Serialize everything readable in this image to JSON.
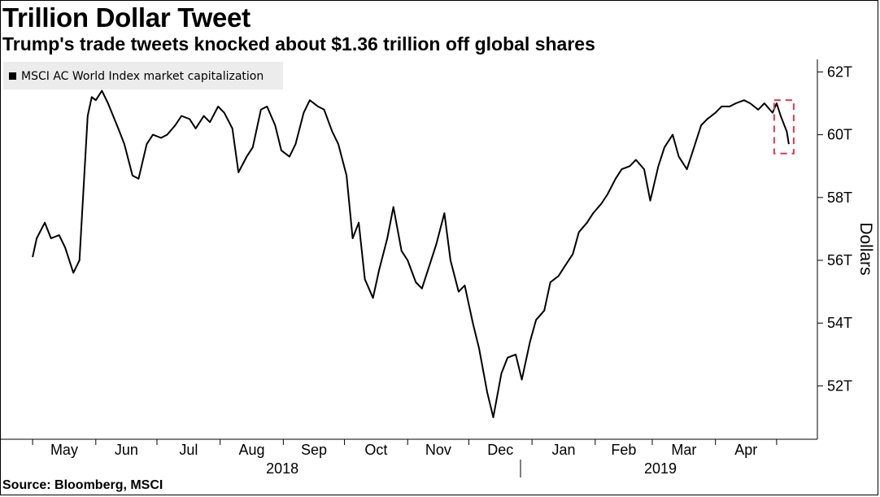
{
  "title": "Trillion Dollar Tweet",
  "subtitle": "Trump's trade tweets knocked about $1.36 trillion off global shares",
  "source": "Source: Bloomberg, MSCI",
  "chart_data": {
    "type": "line",
    "title": "Trillion Dollar Tweet",
    "subtitle": "Trump's trade tweets knocked about $1.36 trillion off global shares",
    "ylabel": "Dollars",
    "xlabel": "",
    "ylim": [
      50.3,
      62.4
    ],
    "y_ticks": [
      52,
      54,
      56,
      58,
      60,
      62
    ],
    "y_tick_labels": [
      "52T",
      "54T",
      "56T",
      "58T",
      "60T",
      "62T"
    ],
    "y_axis_position": "right",
    "x_tick_labels": [
      "May",
      "Jun",
      "Jul",
      "Aug",
      "Sep",
      "Oct",
      "Nov",
      "Dec",
      "Jan",
      "Feb",
      "Mar",
      "Apr"
    ],
    "x_year_labels": [
      "2018",
      "2019"
    ],
    "grid": false,
    "legend_position": "top-left",
    "series": [
      {
        "name": "MSCI AC World Index market capitalization",
        "color": "#000000",
        "x": [
          "2018-05-01",
          "2018-05-03",
          "2018-05-07",
          "2018-05-10",
          "2018-05-14",
          "2018-05-17",
          "2018-05-21",
          "2018-05-24",
          "2018-05-28",
          "2018-05-30",
          "2018-06-01",
          "2018-06-04",
          "2018-06-07",
          "2018-06-12",
          "2018-06-15",
          "2018-06-19",
          "2018-06-22",
          "2018-06-26",
          "2018-06-29",
          "2018-07-03",
          "2018-07-06",
          "2018-07-10",
          "2018-07-13",
          "2018-07-17",
          "2018-07-20",
          "2018-07-24",
          "2018-07-27",
          "2018-07-31",
          "2018-08-03",
          "2018-08-07",
          "2018-08-10",
          "2018-08-14",
          "2018-08-17",
          "2018-08-21",
          "2018-08-24",
          "2018-08-28",
          "2018-08-31",
          "2018-09-04",
          "2018-09-07",
          "2018-09-11",
          "2018-09-14",
          "2018-09-18",
          "2018-09-21",
          "2018-09-25",
          "2018-09-28",
          "2018-10-02",
          "2018-10-05",
          "2018-10-08",
          "2018-10-11",
          "2018-10-15",
          "2018-10-18",
          "2018-10-22",
          "2018-10-25",
          "2018-10-29",
          "2018-11-01",
          "2018-11-05",
          "2018-11-08",
          "2018-11-12",
          "2018-11-15",
          "2018-11-19",
          "2018-11-22",
          "2018-11-26",
          "2018-11-29",
          "2018-12-03",
          "2018-12-06",
          "2018-12-10",
          "2018-12-13",
          "2018-12-17",
          "2018-12-20",
          "2018-12-24",
          "2018-12-27",
          "2018-12-31",
          "2019-01-03",
          "2019-01-07",
          "2019-01-10",
          "2019-01-14",
          "2019-01-17",
          "2019-01-21",
          "2019-01-24",
          "2019-01-28",
          "2019-01-31",
          "2019-02-04",
          "2019-02-07",
          "2019-02-11",
          "2019-02-14",
          "2019-02-18",
          "2019-02-21",
          "2019-02-25",
          "2019-02-28",
          "2019-03-04",
          "2019-03-07",
          "2019-03-11",
          "2019-03-14",
          "2019-03-18",
          "2019-03-21",
          "2019-03-25",
          "2019-03-28",
          "2019-04-01",
          "2019-04-04",
          "2019-04-08",
          "2019-04-11",
          "2019-04-15",
          "2019-04-18",
          "2019-04-22",
          "2019-04-25",
          "2019-04-29",
          "2019-05-01",
          "2019-05-03",
          "2019-05-06",
          "2019-05-07"
        ],
        "values": [
          56.1,
          56.7,
          57.2,
          56.7,
          56.8,
          56.4,
          55.6,
          56.0,
          60.6,
          61.2,
          61.1,
          61.4,
          61.0,
          60.2,
          59.7,
          58.7,
          58.6,
          59.7,
          60.0,
          59.9,
          60.0,
          60.3,
          60.6,
          60.5,
          60.2,
          60.6,
          60.4,
          60.9,
          60.7,
          60.2,
          58.8,
          59.3,
          59.6,
          60.8,
          60.9,
          60.3,
          59.5,
          59.3,
          59.7,
          60.7,
          61.1,
          60.9,
          60.8,
          60.1,
          59.7,
          58.7,
          56.7,
          57.2,
          55.4,
          54.8,
          55.7,
          56.7,
          57.7,
          56.3,
          56.0,
          55.3,
          55.1,
          55.9,
          56.5,
          57.5,
          56.0,
          55.0,
          55.2,
          54.0,
          53.2,
          51.8,
          51.0,
          52.4,
          52.9,
          53.0,
          52.2,
          53.4,
          54.1,
          54.4,
          55.3,
          55.5,
          55.8,
          56.2,
          56.9,
          57.2,
          57.5,
          57.8,
          58.1,
          58.6,
          58.9,
          59.0,
          59.2,
          58.9,
          57.9,
          59.0,
          59.6,
          60.0,
          59.3,
          58.9,
          59.5,
          60.3,
          60.5,
          60.7,
          60.9,
          60.9,
          61.0,
          61.1,
          61.0,
          60.8,
          61.0,
          60.7,
          61.0,
          60.6,
          60.1,
          59.7
        ]
      }
    ],
    "annotation": {
      "type": "dashed-box",
      "color": "#e8364a",
      "x_range": [
        "2019-05-01",
        "2019-05-07"
      ],
      "y_range": [
        59.4,
        61.1
      ]
    }
  }
}
